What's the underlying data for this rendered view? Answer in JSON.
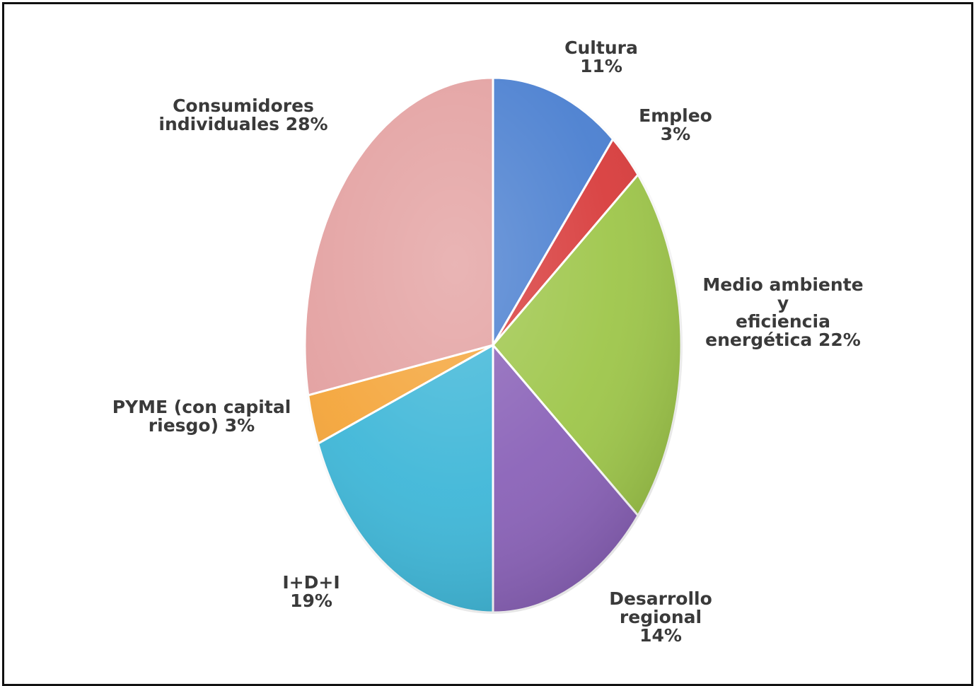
{
  "chart_data": {
    "type": "pie",
    "title": "",
    "slices": [
      {
        "label_lines": [
          "Cultura",
          "11%"
        ],
        "value": 11,
        "color": "#4a7fd0"
      },
      {
        "label_lines": [
          "Empleo",
          "3%"
        ],
        "value": 3,
        "color": "#d83c3c"
      },
      {
        "label_lines": [
          "Medio  ambiente",
          "y",
          "eficiencia",
          "energética 22%"
        ],
        "value": 22,
        "color": "#9ec64a"
      },
      {
        "label_lines": [
          "Desarrollo",
          "regional",
          "14%"
        ],
        "value": 14,
        "color": "#8a62b8"
      },
      {
        "label_lines": [
          "I+D+I",
          "19%"
        ],
        "value": 19,
        "color": "#3fb7d8"
      },
      {
        "label_lines": [
          "PYME  (con capital",
          "riesgo) 3%"
        ],
        "value": 3,
        "color": "#f4a53a"
      },
      {
        "label_lines": [
          "Consumidores",
          "individuales  28%"
        ],
        "value": 28,
        "color": "#e3a0a0"
      }
    ],
    "legend": "none",
    "labels": "outside"
  }
}
